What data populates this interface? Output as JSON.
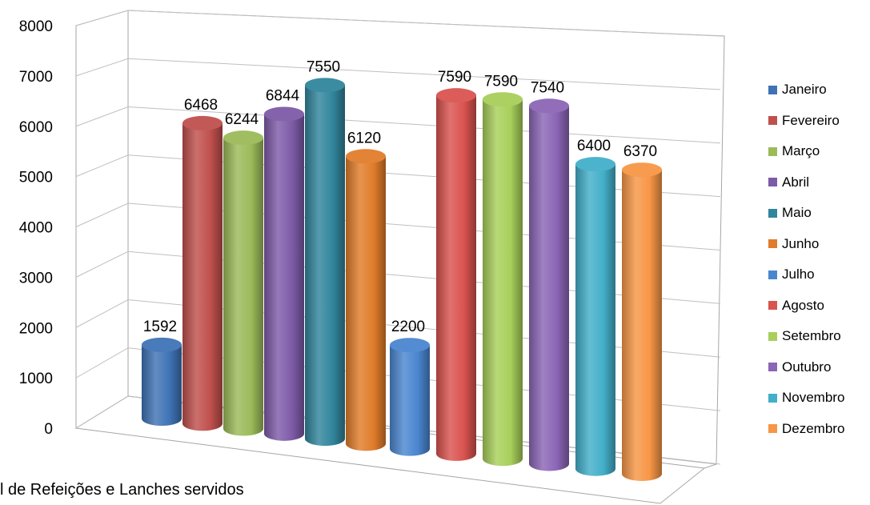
{
  "chart_data": {
    "type": "bar",
    "style": "3d-cylinder",
    "categories": [
      "Janeiro",
      "Fevereiro",
      "Março",
      "Abril",
      "Maio",
      "Junho",
      "Julho",
      "Agosto",
      "Setembro",
      "Outubro",
      "Novembro",
      "Dezembro"
    ],
    "values": [
      1592,
      6468,
      6244,
      6844,
      7550,
      6120,
      2200,
      7590,
      7590,
      7540,
      6400,
      6370
    ],
    "colors": [
      "#3f73b5",
      "#c0504d",
      "#9bbb59",
      "#7e5ba8",
      "#31859c",
      "#e07c2a",
      "#4a86d0",
      "#d9534f",
      "#a8cf5a",
      "#8b65b6",
      "#43afc9",
      "#f79646"
    ],
    "ylim": [
      0,
      8000
    ],
    "yticks": [
      "0",
      "1000",
      "2000",
      "3000",
      "4000",
      "5000",
      "6000",
      "7000",
      "8000"
    ],
    "grid": true,
    "legend": "right",
    "title": "",
    "xlabel": "",
    "ylabel": ""
  },
  "caption": "l de Refeições e Lanches servidos"
}
